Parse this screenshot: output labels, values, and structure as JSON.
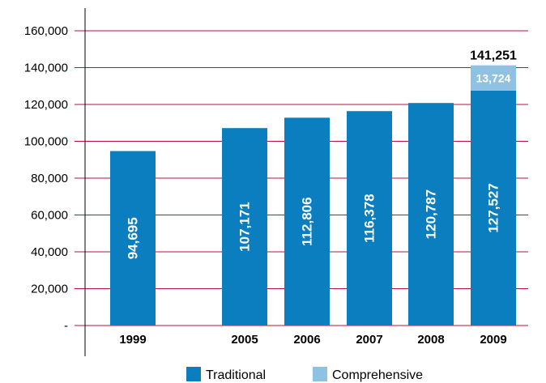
{
  "chart_data": {
    "type": "bar",
    "stacked": true,
    "categories": [
      "1999",
      "2005",
      "2006",
      "2007",
      "2008",
      "2009"
    ],
    "series": [
      {
        "name": "Traditional",
        "color": "#0a7ebf",
        "values": [
          94695,
          107171,
          112806,
          116378,
          120787,
          127527
        ],
        "labels": [
          "94,695",
          "107,171",
          "112,806",
          "116,378",
          "120,787",
          "127,527"
        ]
      },
      {
        "name": "Comprehensive",
        "color": "#8fc1e3",
        "values": [
          null,
          null,
          null,
          null,
          null,
          13724
        ],
        "labels": [
          "",
          "",
          "",
          "",
          "",
          "13,724"
        ]
      }
    ],
    "totals": {
      "category": "2009",
      "label": "141,251",
      "value": 141251
    },
    "ylim": [
      0,
      160000
    ],
    "yticks": [
      0,
      20000,
      40000,
      60000,
      80000,
      100000,
      120000,
      140000,
      160000
    ],
    "ytick_labels": [
      "-",
      "20,000",
      "40,000",
      "60,000",
      "80,000",
      "100,000",
      "120,000",
      "140,000",
      "160,000"
    ],
    "grid": true,
    "grid_color": "#b5123c",
    "legend_position": "bottom-center"
  }
}
